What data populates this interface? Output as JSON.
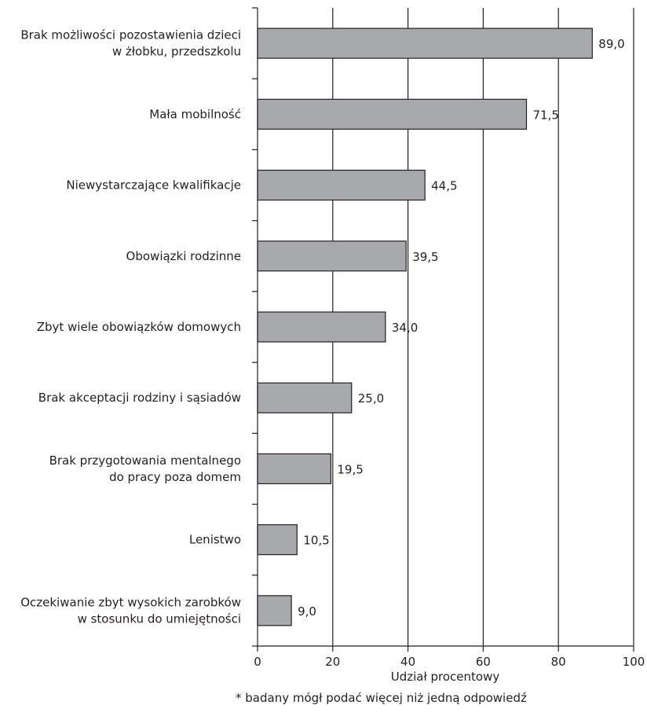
{
  "chart_data": {
    "type": "bar",
    "orientation": "horizontal",
    "categories": [
      [
        "Brak możliwości pozostawienia dzieci",
        "w żłobku, przedszkolu"
      ],
      [
        "Mała mobilność"
      ],
      [
        "Niewystarczające kwalifikacje"
      ],
      [
        "Obowiązki rodzinne"
      ],
      [
        "Zbyt wiele obowiązków domowych"
      ],
      [
        "Brak akceptacji rodziny i sąsiadów"
      ],
      [
        "Brak przygotowania mentalnego",
        "do pracy poza domem"
      ],
      [
        "Lenistwo"
      ],
      [
        "Oczekiwanie zbyt wysokich zarobków",
        "w stosunku do umiejętności"
      ]
    ],
    "values": [
      89.0,
      71.5,
      44.5,
      39.5,
      34.0,
      25.0,
      19.5,
      10.5,
      9.0
    ],
    "value_labels": [
      "89,0",
      "71,5",
      "44,5",
      "39,5",
      "34,0",
      "25,0",
      "19,5",
      "10,5",
      "9,0"
    ],
    "xlabel": "Udział procentowy",
    "xlim": [
      0,
      100
    ],
    "xticks": [
      0,
      20,
      40,
      60,
      80,
      100
    ],
    "grid": "vertical",
    "bar_color": "#a7a9ac",
    "bar_border_color": "#231f20"
  },
  "footnote": "* badany mógł podać więcej niż jedną odpowiedź"
}
